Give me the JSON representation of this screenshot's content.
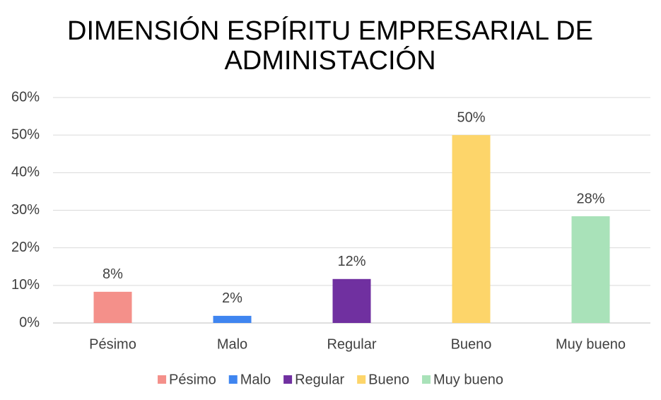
{
  "chart_data": {
    "type": "bar",
    "title": [
      "DIMENSIÓN ESPÍRITU EMPRESARIAL DE",
      "ADMINISTACIÓN"
    ],
    "categories": [
      "Pésimo",
      "Malo",
      "Regular",
      "Bueno",
      "Muy bueno"
    ],
    "values": [
      8.3,
      1.9,
      11.7,
      50,
      28.4
    ],
    "value_labels": [
      "8%",
      "2%",
      "12%",
      "50%",
      "28%"
    ],
    "colors": [
      "#f4908a",
      "#3f85f0",
      "#7030a0",
      "#fdd56a",
      "#a9e2b9"
    ],
    "ylim": [
      0,
      60
    ],
    "yticks": [
      {
        "value": 0,
        "label": "0%"
      },
      {
        "value": 10,
        "label": "10%"
      },
      {
        "value": 20,
        "label": "20%"
      },
      {
        "value": 30,
        "label": "30%"
      },
      {
        "value": 40,
        "label": "40%"
      },
      {
        "value": 50,
        "label": "50%"
      },
      {
        "value": 60,
        "label": "60%"
      }
    ],
    "grid": true,
    "legend": "bottom"
  }
}
